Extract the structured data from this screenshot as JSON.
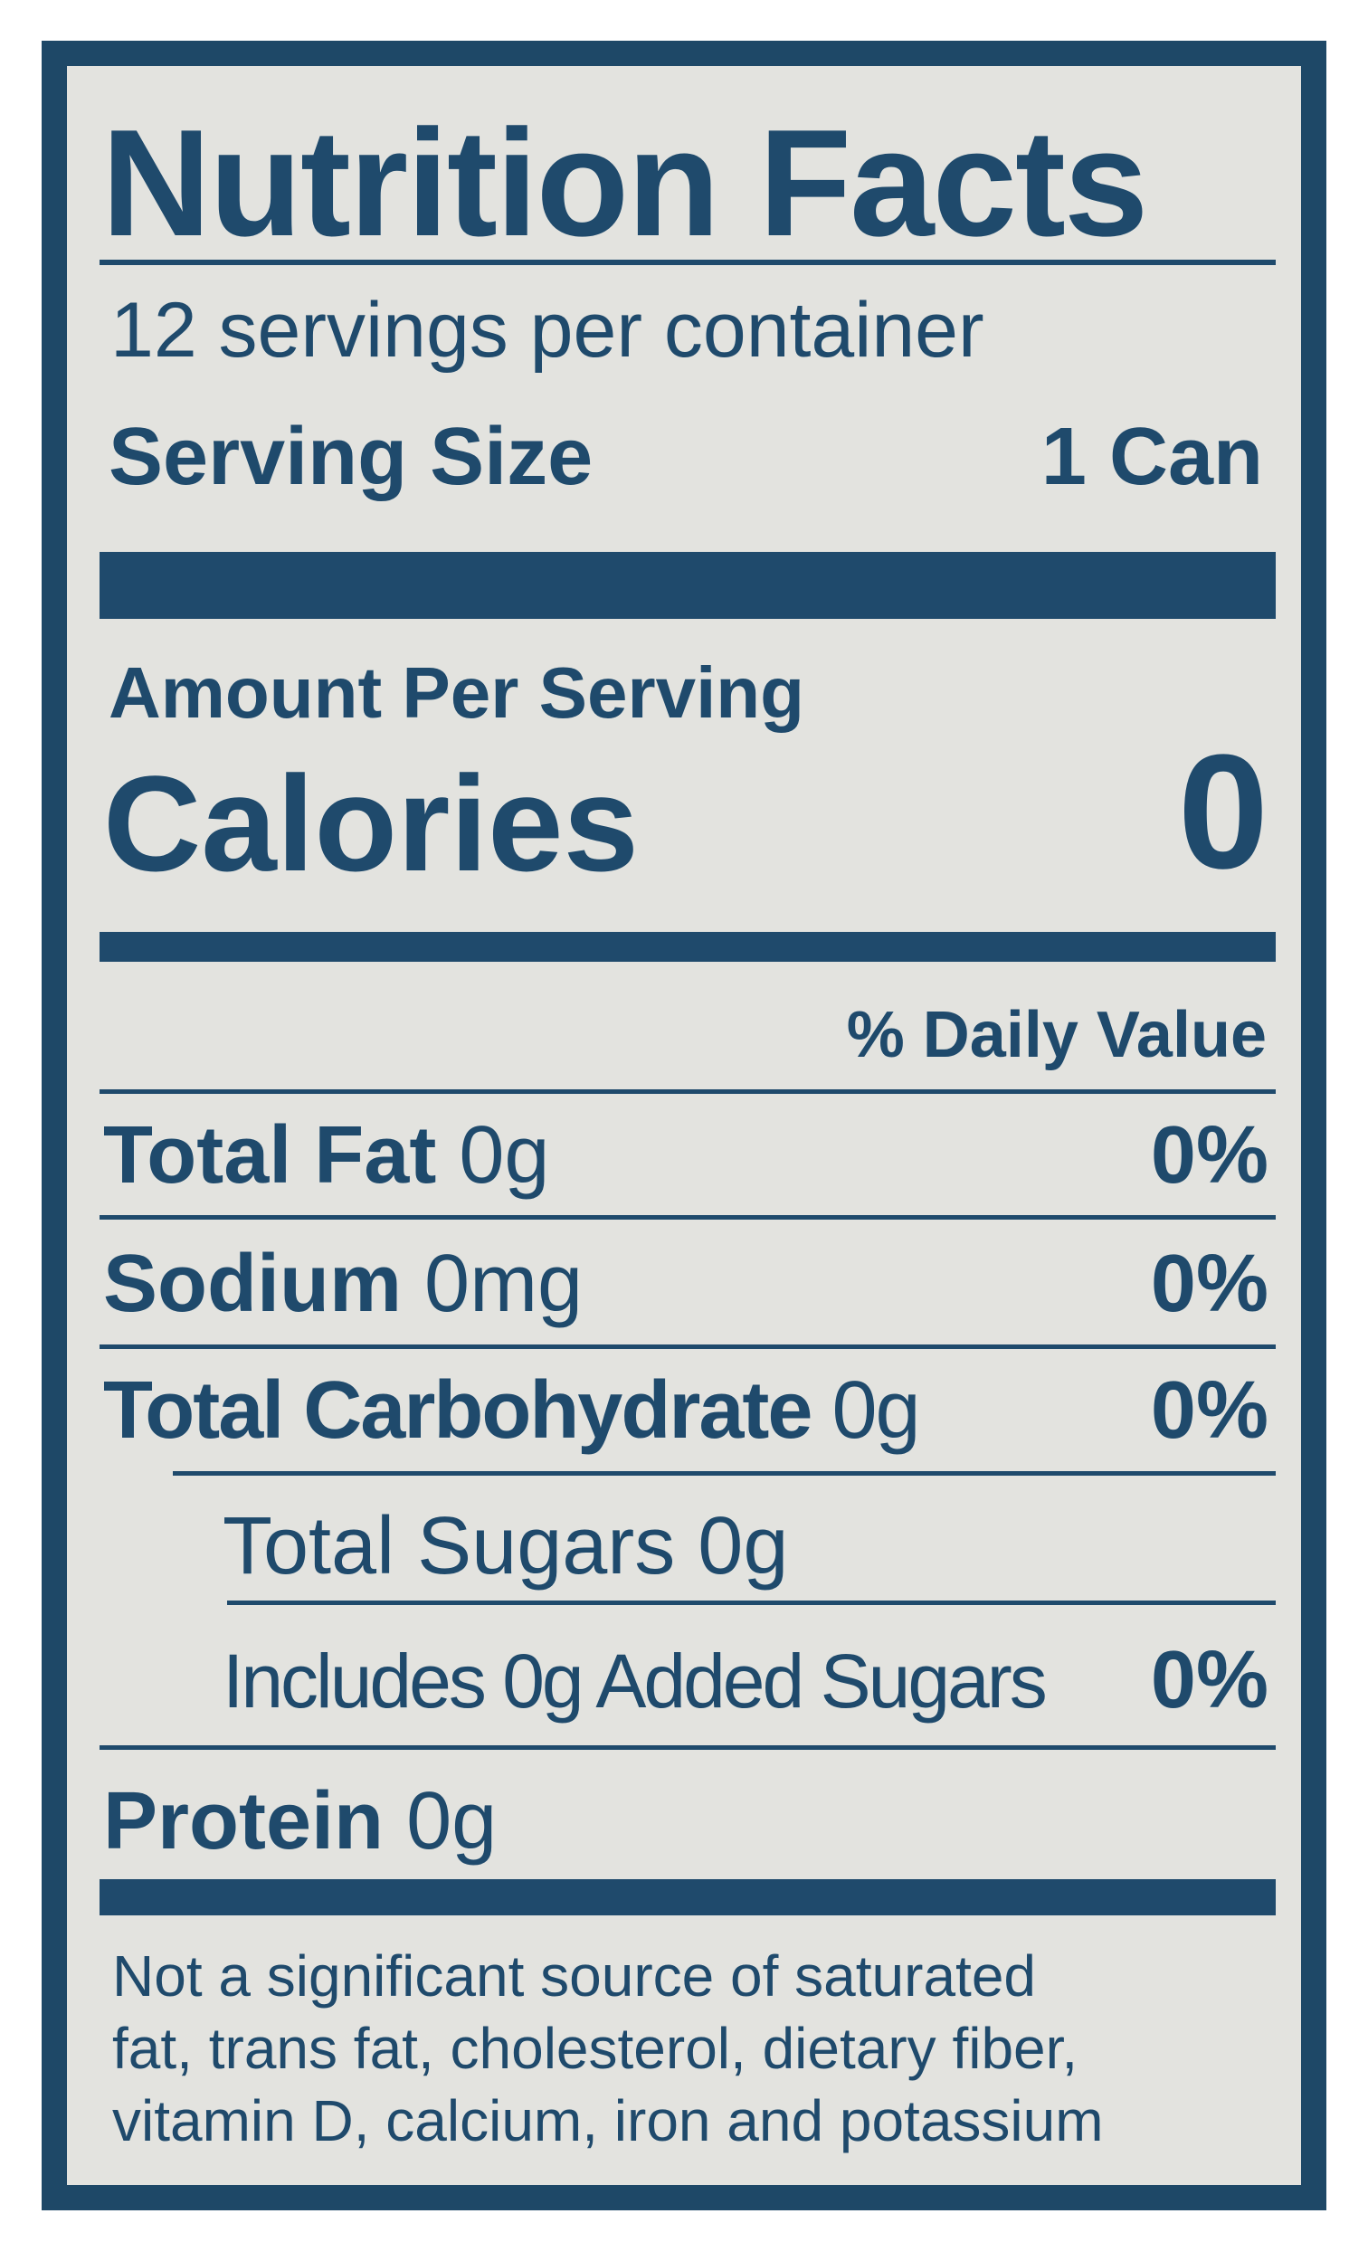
{
  "title": "Nutrition Facts",
  "servings_per_container": "12 servings per container",
  "serving_size": {
    "label": "Serving Size",
    "value": "1 Can"
  },
  "amount_per_serving": "Amount Per Serving",
  "calories": {
    "label": "Calories",
    "value": "0"
  },
  "daily_value_header": "% Daily Value",
  "nutrients": [
    {
      "label": "Total Fat",
      "amount": "0g",
      "dv": "0%"
    },
    {
      "label": "Sodium",
      "amount": "0mg",
      "dv": "0%"
    },
    {
      "label": "Total Carbohydrate",
      "amount": "0g",
      "dv": "0%"
    },
    {
      "label": "Total Sugars 0g"
    },
    {
      "label": "Includes 0g Added Sugars",
      "dv": "0%"
    },
    {
      "label": "Protein",
      "amount": "0g"
    }
  ],
  "footnote": [
    "Not a significant source of saturated",
    "fat, trans fat, cholesterol, dietary fiber,",
    "vitamin D, calcium, iron and potassium"
  ],
  "colors": {
    "ink": "#1f4a6c",
    "background": "#e3e3df",
    "frame": "#1e4867"
  }
}
